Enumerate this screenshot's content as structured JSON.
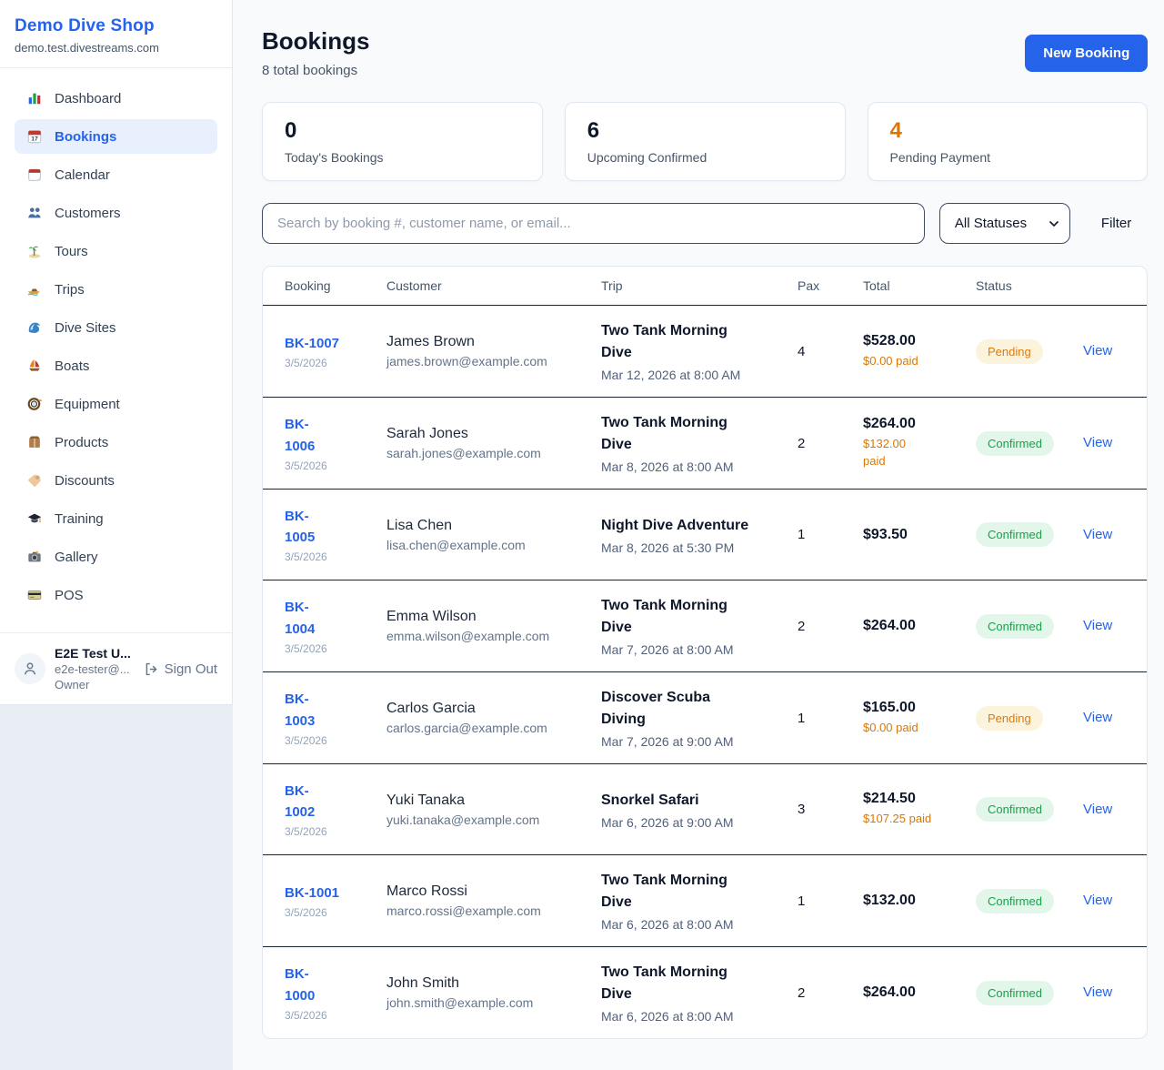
{
  "sidebar": {
    "brand": {
      "name": "Demo Dive Shop",
      "domain": "demo.test.divestreams.com"
    },
    "items": [
      {
        "icon": "dashboard-icon",
        "label": "Dashboard",
        "active": false
      },
      {
        "icon": "bookings-calendar-icon",
        "label": "Bookings",
        "active": true
      },
      {
        "icon": "calendar-icon",
        "label": "Calendar",
        "active": false
      },
      {
        "icon": "customers-icon",
        "label": "Customers",
        "active": false
      },
      {
        "icon": "tours-island-icon",
        "label": "Tours",
        "active": false
      },
      {
        "icon": "trips-speedboat-icon",
        "label": "Trips",
        "active": false
      },
      {
        "icon": "dive-sites-wave-icon",
        "label": "Dive Sites",
        "active": false
      },
      {
        "icon": "boats-sailboat-icon",
        "label": "Boats",
        "active": false
      },
      {
        "icon": "equipment-mask-icon",
        "label": "Equipment",
        "active": false
      },
      {
        "icon": "products-box-icon",
        "label": "Products",
        "active": false
      },
      {
        "icon": "discounts-tag-icon",
        "label": "Discounts",
        "active": false
      },
      {
        "icon": "training-cap-icon",
        "label": "Training",
        "active": false
      },
      {
        "icon": "gallery-camera-icon",
        "label": "Gallery",
        "active": false
      },
      {
        "icon": "pos-card-icon",
        "label": "POS",
        "active": false
      }
    ],
    "user": {
      "name": "E2E Test U...",
      "email": "e2e-tester@...",
      "role": "Owner",
      "signout_label": "Sign Out"
    }
  },
  "header": {
    "title": "Bookings",
    "subtitle": "8 total bookings",
    "new_booking_label": "New Booking"
  },
  "stats": [
    {
      "value": "0",
      "label": "Today's Bookings",
      "highlight": false
    },
    {
      "value": "6",
      "label": "Upcoming Confirmed",
      "highlight": false
    },
    {
      "value": "4",
      "label": "Pending Payment",
      "highlight": true
    }
  ],
  "filters": {
    "search_placeholder": "Search by booking #, customer name, or email...",
    "status_selected": "All Statuses",
    "filter_label": "Filter"
  },
  "table": {
    "columns": {
      "booking": "Booking",
      "customer": "Customer",
      "trip": "Trip",
      "pax": "Pax",
      "total": "Total",
      "status": "Status"
    },
    "rows": [
      {
        "id": "BK-1007",
        "date": "3/5/2026",
        "name": "James Brown",
        "email": "james.brown@example.com",
        "trip": "Two Tank Morning\nDive",
        "trip_date": "Mar 12, 2026 at 8:00 AM",
        "pax": "4",
        "total": "$528.00",
        "paid": "$0.00 paid",
        "status": "Pending",
        "view": "View"
      },
      {
        "id": "BK-\n1006",
        "date": "3/5/2026",
        "name": "Sarah Jones",
        "email": "sarah.jones@example.com",
        "trip": "Two Tank Morning\nDive",
        "trip_date": "Mar 8, 2026 at 8:00 AM",
        "pax": "2",
        "total": "$264.00",
        "paid": "$132.00\npaid",
        "status": "Confirmed",
        "view": "View"
      },
      {
        "id": "BK-\n1005",
        "date": "3/5/2026",
        "name": "Lisa Chen",
        "email": "lisa.chen@example.com",
        "trip": "Night Dive Adventure",
        "trip_date": "Mar 8, 2026 at 5:30 PM",
        "pax": "1",
        "total": "$93.50",
        "paid": "",
        "status": "Confirmed",
        "view": "View"
      },
      {
        "id": "BK-\n1004",
        "date": "3/5/2026",
        "name": "Emma Wilson",
        "email": "emma.wilson@example.com",
        "trip": "Two Tank Morning\nDive",
        "trip_date": "Mar 7, 2026 at 8:00 AM",
        "pax": "2",
        "total": "$264.00",
        "paid": "",
        "status": "Confirmed",
        "view": "View"
      },
      {
        "id": "BK-\n1003",
        "date": "3/5/2026",
        "name": "Carlos Garcia",
        "email": "carlos.garcia@example.com",
        "trip": "Discover Scuba\nDiving",
        "trip_date": "Mar 7, 2026 at 9:00 AM",
        "pax": "1",
        "total": "$165.00",
        "paid": "$0.00 paid",
        "status": "Pending",
        "view": "View"
      },
      {
        "id": "BK-\n1002",
        "date": "3/5/2026",
        "name": "Yuki Tanaka",
        "email": "yuki.tanaka@example.com",
        "trip": "Snorkel Safari",
        "trip_date": "Mar 6, 2026 at 9:00 AM",
        "pax": "3",
        "total": "$214.50",
        "paid": "$107.25 paid",
        "status": "Confirmed",
        "view": "View"
      },
      {
        "id": "BK-1001",
        "date": "3/5/2026",
        "name": "Marco Rossi",
        "email": "marco.rossi@example.com",
        "trip": "Two Tank Morning\nDive",
        "trip_date": "Mar 6, 2026 at 8:00 AM",
        "pax": "1",
        "total": "$132.00",
        "paid": "",
        "status": "Confirmed",
        "view": "View"
      },
      {
        "id": "BK-\n1000",
        "date": "3/5/2026",
        "name": "John Smith",
        "email": "john.smith@example.com",
        "trip": "Two Tank Morning\nDive",
        "trip_date": "Mar 6, 2026 at 8:00 AM",
        "pax": "2",
        "total": "$264.00",
        "paid": "",
        "status": "Confirmed",
        "view": "View"
      }
    ]
  },
  "colors": {
    "accent_blue": "#2563eb",
    "active_item_bg": "#e9f0fd",
    "pending_text": "#d97c12",
    "pending_bg": "#fcf3dd",
    "confirmed_text": "#18a24b",
    "confirmed_bg": "#e3f6ea",
    "orange_stat": "#d97706",
    "main_bg": "#f8fafc",
    "body_bg": "#e9eef5"
  }
}
